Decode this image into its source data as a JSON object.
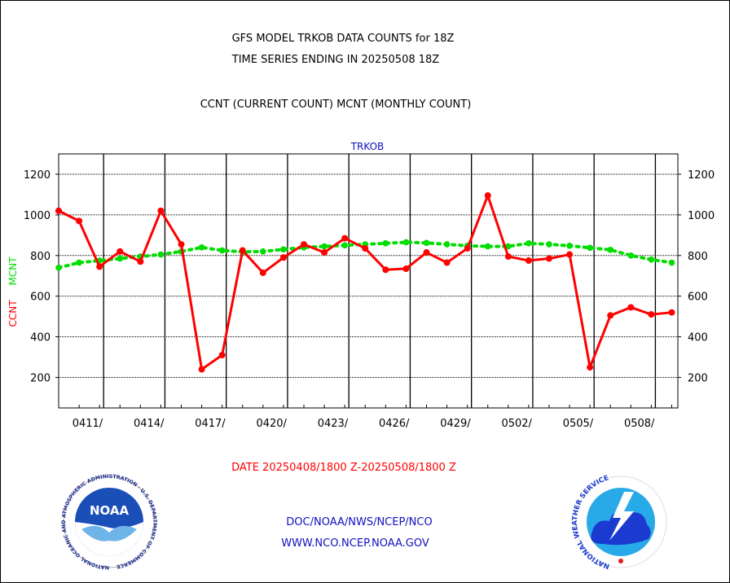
{
  "chart_data": {
    "type": "line",
    "title_lines": [
      "GFS MODEL TRKOB DATA COUNTS for 18Z",
      "TIME SERIES ENDING IN 20250508 18Z"
    ],
    "subtitle": "CCNT (CURRENT COUNT) MCNT (MONTHLY COUNT)",
    "panel_label": "TRKOB",
    "ylabel_left_red": "CCNT",
    "ylabel_left_green": "MCNT",
    "xlabel": "DATE 20250408/1800 Z-20250508/1800 Z",
    "ylim": [
      50,
      1300
    ],
    "yticks": [
      200,
      400,
      600,
      800,
      1000,
      1200
    ],
    "yticklabels": [
      "200",
      "400",
      "600",
      "800",
      "1000",
      "1200"
    ],
    "xlim": [
      0,
      30.3
    ],
    "xtick_positions": [
      2.2,
      5.2,
      8.2,
      11.2,
      14.2,
      17.2,
      20.2,
      23.2,
      26.2,
      29.2
    ],
    "xticklabels": [
      "0411/",
      "0414/",
      "0417/",
      "0420/",
      "0423/",
      "0426/",
      "0429/",
      "0502/",
      "0505/",
      "0508/"
    ],
    "vgrid_positions": [
      2.2,
      5.2,
      8.2,
      11.2,
      14.2,
      17.2,
      20.2,
      23.2,
      26.2,
      29.2
    ],
    "hgrid_values": [
      200,
      400,
      600,
      800,
      1000,
      1200
    ],
    "series": [
      {
        "name": "CCNT",
        "color": "#ff0000",
        "style": "solid",
        "x": [
          0,
          1,
          2,
          3,
          4,
          5,
          6,
          7,
          8,
          9,
          10,
          11,
          12,
          13,
          14,
          15,
          16,
          17,
          18,
          19,
          20,
          21,
          22,
          23,
          24,
          25,
          26,
          27,
          28,
          29,
          30
        ],
        "values": [
          1020,
          970,
          745,
          820,
          770,
          1020,
          855,
          240,
          310,
          825,
          715,
          790,
          855,
          815,
          885,
          835,
          730,
          735,
          815,
          765,
          835,
          1095,
          795,
          775,
          785,
          805,
          250,
          505,
          545,
          510,
          520
        ]
      },
      {
        "name": "MCNT",
        "color": "#00dd00",
        "style": "dotted",
        "x": [
          0,
          1,
          2,
          3,
          4,
          5,
          6,
          7,
          8,
          9,
          10,
          11,
          12,
          13,
          14,
          15,
          16,
          17,
          18,
          19,
          20,
          21,
          22,
          23,
          24,
          25,
          26,
          27,
          28,
          29,
          30
        ],
        "values": [
          740,
          765,
          775,
          785,
          795,
          805,
          820,
          840,
          825,
          818,
          820,
          830,
          840,
          845,
          850,
          855,
          860,
          865,
          862,
          855,
          848,
          845,
          845,
          860,
          855,
          848,
          838,
          828,
          800,
          780,
          765
        ]
      }
    ]
  },
  "footer": {
    "link1": "DOC/NOAA/NWS/NCEP/NCO",
    "link2": "WWW.NCO.NCEP.NOAA.GOV"
  },
  "logos": {
    "left": {
      "icon": "noaa-logo",
      "text": "NOAA",
      "ring_text": "NATIONAL OCEANIC AND ATMOSPHERIC ADMINISTRATION · U.S. DEPARTMENT OF COMMERCE"
    },
    "right": {
      "icon": "nws-logo",
      "ring_text": "NATIONAL WEATHER SERVICE"
    }
  }
}
